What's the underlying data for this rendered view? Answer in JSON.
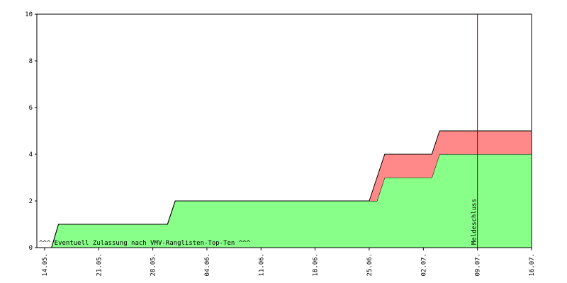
{
  "chart_data": {
    "type": "area",
    "x": [
      -1,
      0.9,
      1.8,
      15.9,
      16.9,
      42,
      43,
      44,
      50.1,
      51.1,
      63
    ],
    "series": [
      {
        "color": "#88ff88",
        "values": [
          0,
          0,
          1,
          1,
          2,
          2,
          2,
          3,
          3,
          4,
          4
        ]
      },
      {
        "color": "#ff8888",
        "values": [
          0,
          0,
          0,
          0,
          0,
          0,
          1,
          1,
          1,
          1,
          1
        ]
      }
    ],
    "stacked": true,
    "xlim": [
      -1,
      63
    ],
    "xticks": [
      {
        "value": 0,
        "label": "14.05."
      },
      {
        "value": 7,
        "label": "21.05."
      },
      {
        "value": 14,
        "label": "28.05."
      },
      {
        "value": 21,
        "label": "04.06."
      },
      {
        "value": 28,
        "label": "11.06."
      },
      {
        "value": 35,
        "label": "18.06."
      },
      {
        "value": 42,
        "label": "25.06."
      },
      {
        "value": 49,
        "label": "02.07."
      },
      {
        "value": 56,
        "label": "09.07."
      },
      {
        "value": 63,
        "label": "16.07."
      }
    ],
    "ylim": [
      0,
      10
    ],
    "yticks": [
      0,
      2,
      4,
      6,
      8,
      10
    ],
    "grid": false,
    "marker": {
      "x": 56,
      "label": "Meldeschluss",
      "color": "#800000"
    },
    "annotation": {
      "text": "^^^ Eventuell Zulassung nach VMV-Ranglisten-Top-Ten ^^^",
      "color": "#22aa22"
    }
  }
}
